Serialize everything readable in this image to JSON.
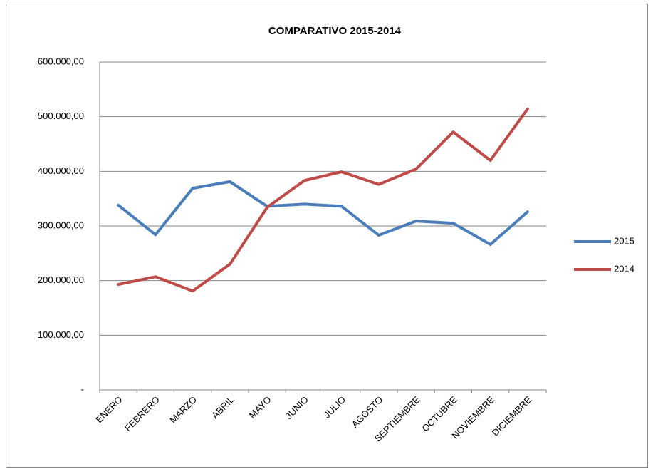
{
  "chart_data": {
    "type": "line",
    "title": "COMPARATIVO 2015-2014",
    "categories": [
      "ENERO",
      "FEBRERO",
      "MARZO",
      "ABRIL",
      "MAYO",
      "JUNIO",
      "JULIO",
      "AGOSTO",
      "SEPTIEMBRE",
      "OCTUBRE",
      "NOVIEMBRE",
      "DICIEMBRE"
    ],
    "series": [
      {
        "name": "2015",
        "color": "#4a7ebb",
        "values": [
          338000,
          284000,
          369000,
          381000,
          336000,
          340000,
          336000,
          283000,
          309000,
          305000,
          266000,
          326000
        ]
      },
      {
        "name": "2014",
        "color": "#be4b48",
        "values": [
          193000,
          207000,
          181000,
          230000,
          334000,
          383000,
          399000,
          376000,
          404000,
          472000,
          420000,
          514000
        ]
      }
    ],
    "ylim": [
      0,
      600000
    ],
    "yticks": [
      {
        "value": 0,
        "label": "-"
      },
      {
        "value": 100000,
        "label": "100.000,00"
      },
      {
        "value": 200000,
        "label": "200.000,00"
      },
      {
        "value": 300000,
        "label": "300.000,00"
      },
      {
        "value": 400000,
        "label": "400.000,00"
      },
      {
        "value": 500000,
        "label": "500.000,00"
      },
      {
        "value": 600000,
        "label": "600.000,00"
      }
    ],
    "grid": true,
    "legend": "right"
  }
}
